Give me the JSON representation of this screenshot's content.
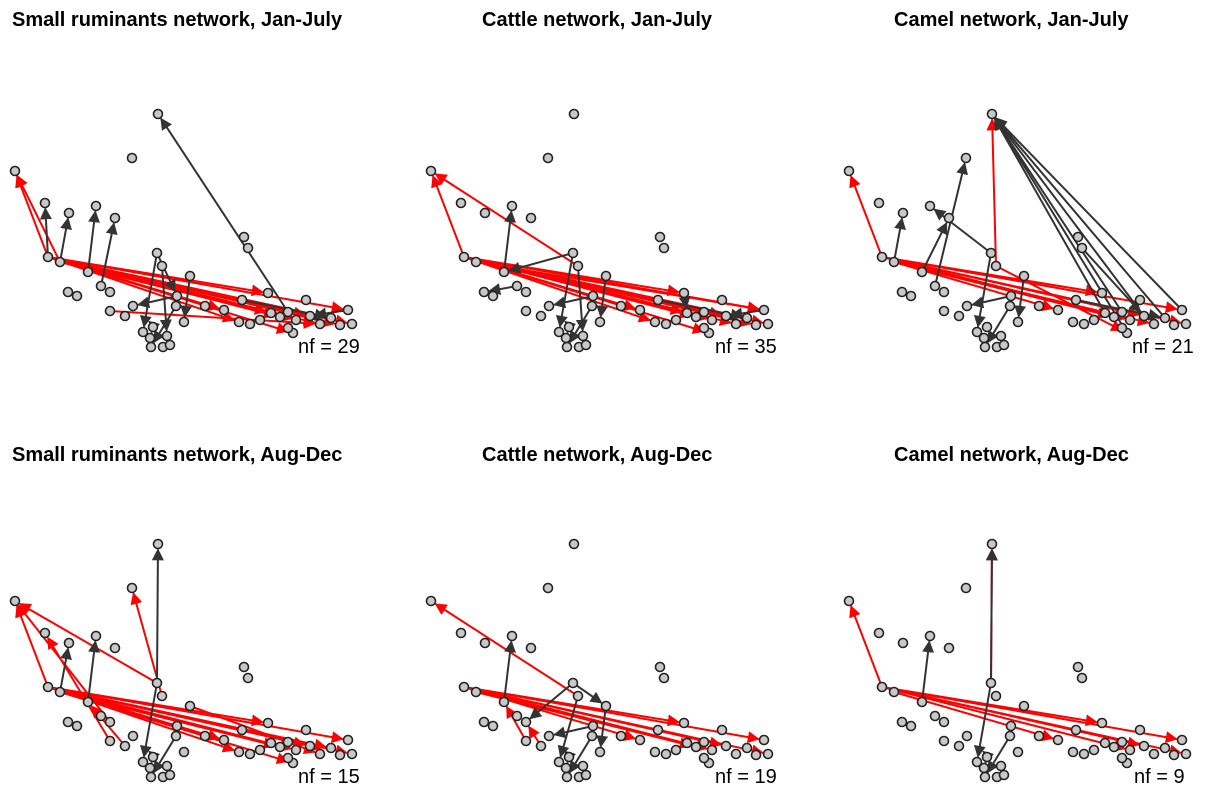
{
  "colors": {
    "node_fill": "#c8c8c8",
    "node_stroke": "#222222",
    "black_edge": "#333333",
    "red_edge": "#ff0000"
  },
  "panels": [
    {
      "title": "Small ruminants network, Jan-July",
      "nf": "nf = 29"
    },
    {
      "title": "Cattle network, Jan-July",
      "nf": "nf = 35"
    },
    {
      "title": "Camel network, Jan-July",
      "nf": "nf = 21"
    },
    {
      "title": "Small ruminants network, Aug-Dec",
      "nf": "nf = 15"
    },
    {
      "title": "Cattle network, Aug-Dec",
      "nf": "nf = 19"
    },
    {
      "title": "Camel network, Aug-Dec",
      "nf": "nf = 9"
    }
  ]
}
